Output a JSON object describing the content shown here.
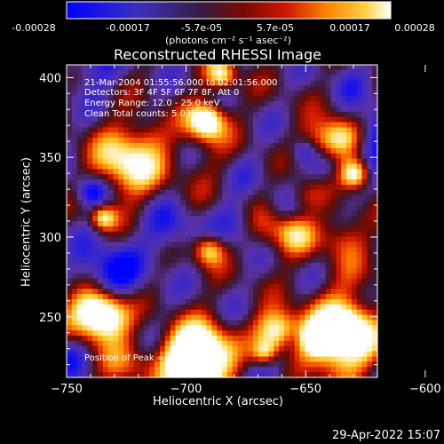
{
  "colorbar": {
    "ticks": [
      "-0.00028",
      "-0.00017",
      "-5.7e-05",
      "5.7e-05",
      "0.00017",
      "0.00028"
    ],
    "unit_label": "(photons cm⁻² s⁻¹ asec⁻²)",
    "range": [
      -0.00028,
      0.00028
    ]
  },
  "chart_data": {
    "type": "heatmap",
    "title": "Reconstructed RHESSI Image",
    "xlabel": "Heliocentric X (arcsec)",
    "ylabel": "Heliocentric Y (arcsec)",
    "xlim": [
      -750,
      -620
    ],
    "ylim": [
      212,
      408
    ],
    "x_ticks": [
      -750,
      -700,
      -650,
      -600
    ],
    "y_ticks": [
      250,
      300,
      350,
      400
    ],
    "colormap": "RHESSI temperature (blue-purple-red-orange-yellow-white)",
    "colormap_colors": [
      "#0000ff",
      "#5a2a9a",
      "#3a1a3a",
      "#cc1a00",
      "#ff7a00",
      "#ffd23a",
      "#ffffff"
    ],
    "annotations": [
      "21-Mar-2004 01:55:56.000 to 02:01:56.000",
      "Detectors: 3F 4F 5F 6F 7F 8F, Att 0",
      "Energy Range: 12.0 - 25.0 keV",
      "Clean     Total counts: 5.03E+03",
      "Position of Peak = [-677,223]"
    ],
    "peak_position": [
      -677,
      223
    ]
  },
  "footer": {
    "date": "29-Apr-2022 15:07"
  }
}
